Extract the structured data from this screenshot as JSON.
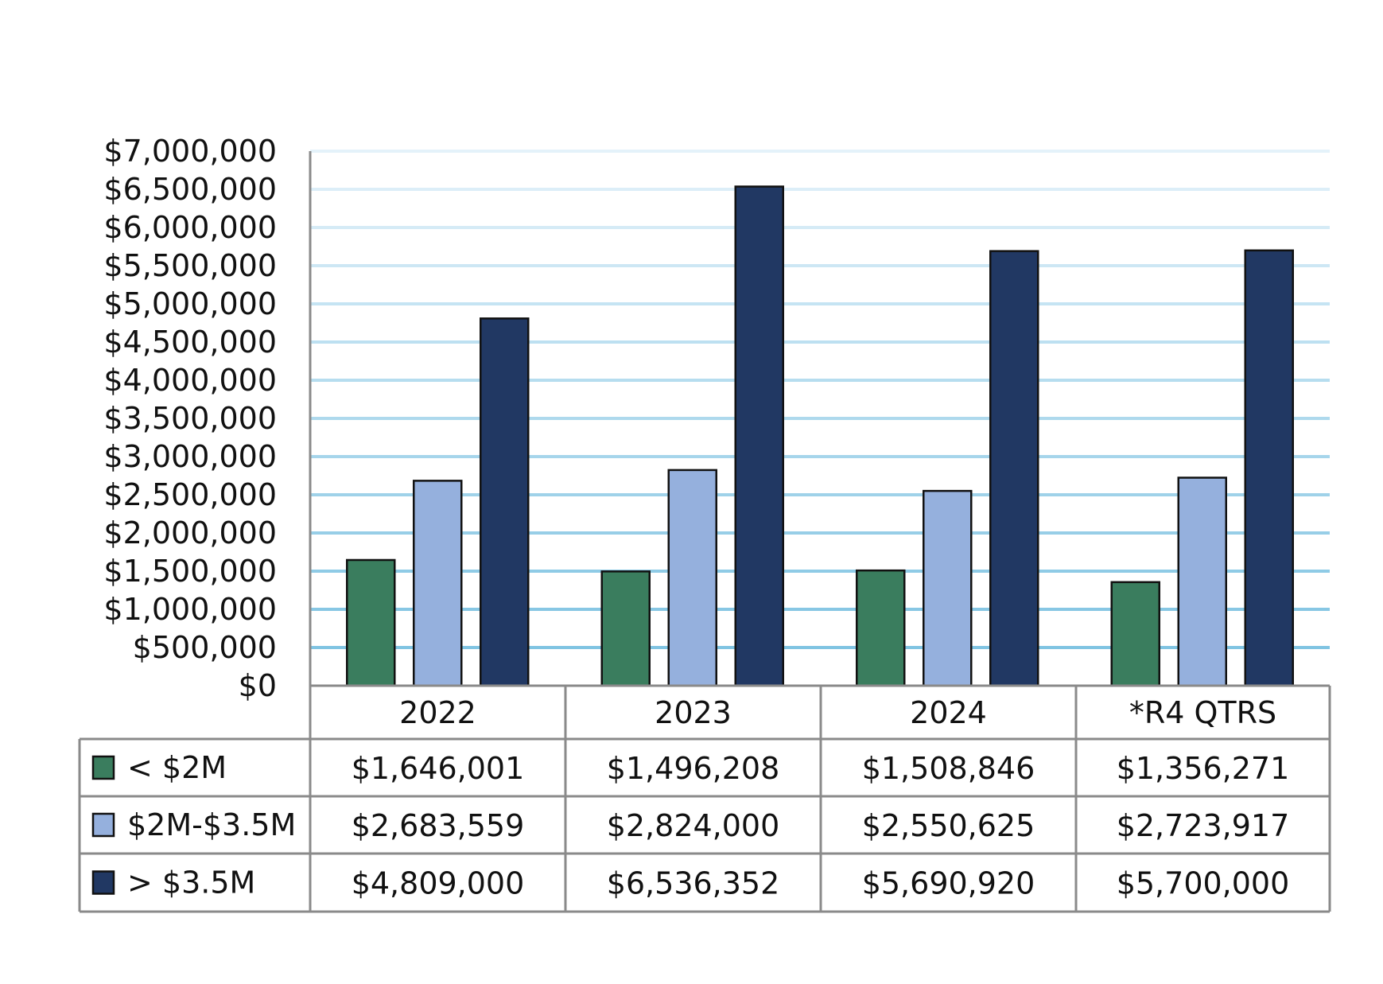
{
  "chart_data": {
    "type": "bar",
    "title": "",
    "xlabel": "",
    "ylabel": "",
    "ylim": [
      0,
      7000000
    ],
    "y_step": 500000,
    "y_tick_labels": [
      "$0",
      "$500,000",
      "$1,000,000",
      "$1,500,000",
      "$2,000,000",
      "$2,500,000",
      "$3,000,000",
      "$3,500,000",
      "$4,000,000",
      "$4,500,000",
      "$5,000,000",
      "$5,500,000",
      "$6,000,000",
      "$6,500,000",
      "$7,000,000"
    ],
    "grid": true,
    "legend": "data-table-left",
    "categories": [
      "2022",
      "2023",
      "2024",
      "*R4 QTRS"
    ],
    "series": [
      {
        "name": "< $2M",
        "color": "#3a7d5e",
        "values": [
          1646001,
          1496208,
          1508846,
          1356271
        ],
        "labels": [
          "$1,646,001",
          "$1,496,208",
          "$1,508,846",
          "$1,356,271"
        ]
      },
      {
        "name": "$2M-$3.5M",
        "color": "#95b0dd",
        "values": [
          2683559,
          2824000,
          2550625,
          2723917
        ],
        "labels": [
          "$2,683,559",
          "$2,824,000",
          "$2,550,625",
          "$2,723,917"
        ]
      },
      {
        "name": "> $3.5M",
        "color": "#213863",
        "values": [
          4809000,
          6536352,
          5690920,
          5700000
        ],
        "labels": [
          "$4,809,000",
          "$6,536,352",
          "$5,690,920",
          "$5,700,000"
        ]
      }
    ]
  }
}
